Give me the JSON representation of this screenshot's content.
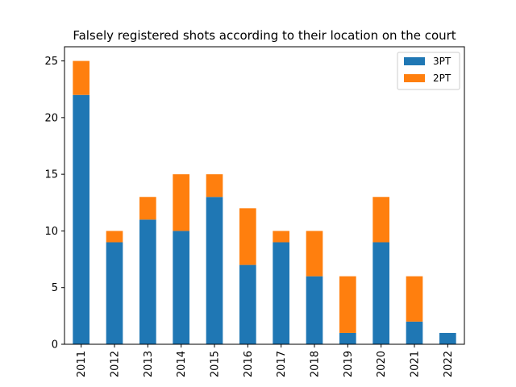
{
  "chart_data": {
    "type": "bar",
    "stacked": true,
    "title": "Falsely registered shots according to their location on the court",
    "xlabel": "",
    "ylabel": "",
    "categories": [
      "2011",
      "2012",
      "2013",
      "2014",
      "2015",
      "2016",
      "2017",
      "2018",
      "2019",
      "2020",
      "2021",
      "2022"
    ],
    "series": [
      {
        "name": "3PT",
        "color": "#1f77b4",
        "values": [
          22,
          9,
          11,
          10,
          13,
          7,
          9,
          6,
          1,
          9,
          2,
          1
        ]
      },
      {
        "name": "2PT",
        "color": "#ff7f0e",
        "values": [
          3,
          1,
          2,
          5,
          2,
          5,
          1,
          4,
          5,
          4,
          4,
          0
        ]
      }
    ],
    "ylim": [
      0,
      26.25
    ],
    "yticks": [
      0,
      5,
      10,
      15,
      20,
      25
    ],
    "grid": false,
    "legend_position": "top-right"
  }
}
